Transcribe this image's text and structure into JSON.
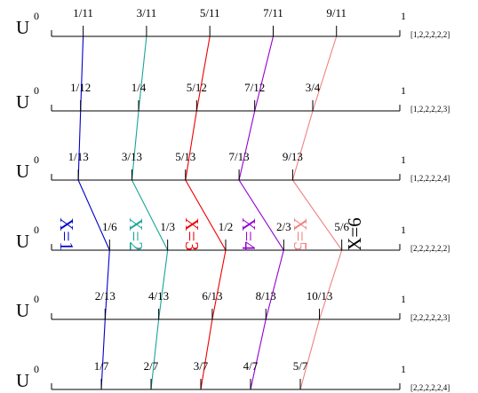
{
  "rows": [
    {
      "U": "U",
      "zero": "0",
      "one": "1",
      "tuple": "[1,2,2,2,2,2]",
      "ticks": [
        {
          "label": "1/11",
          "x": 0.0909
        },
        {
          "label": "3/11",
          "x": 0.2727
        },
        {
          "label": "5/11",
          "x": 0.4545
        },
        {
          "label": "7/11",
          "x": 0.6364
        },
        {
          "label": "9/11",
          "x": 0.8182
        }
      ]
    },
    {
      "U": "U",
      "zero": "0",
      "one": "1",
      "tuple": "[1,2,2,2,2,3]",
      "ticks": [
        {
          "label": "1/12",
          "x": 0.0833
        },
        {
          "label": "1/4",
          "x": 0.25
        },
        {
          "label": "5/12",
          "x": 0.4167
        },
        {
          "label": "7/12",
          "x": 0.5833
        },
        {
          "label": "3/4",
          "x": 0.75
        }
      ]
    },
    {
      "U": "U",
      "zero": "0",
      "one": "1",
      "tuple": "[1,2,2,2,2,4]",
      "ticks": [
        {
          "label": "1/13",
          "x": 0.0769
        },
        {
          "label": "3/13",
          "x": 0.2308
        },
        {
          "label": "5/13",
          "x": 0.3846
        },
        {
          "label": "7/13",
          "x": 0.5385
        },
        {
          "label": "9/13",
          "x": 0.6923
        }
      ]
    },
    {
      "U": "U",
      "zero": "0",
      "one": "1",
      "tuple": "[2,2,2,2,2,2]",
      "ticks": [
        {
          "label": "1/6",
          "x": 0.1667
        },
        {
          "label": "1/3",
          "x": 0.3333
        },
        {
          "label": "1/2",
          "x": 0.5
        },
        {
          "label": "2/3",
          "x": 0.6667
        },
        {
          "label": "5/6",
          "x": 0.8333
        }
      ]
    },
    {
      "U": "U",
      "zero": "0",
      "one": "1",
      "tuple": "[2,2,2,2,2,3]",
      "ticks": [
        {
          "label": "2/13",
          "x": 0.1538
        },
        {
          "label": "4/13",
          "x": 0.3077
        },
        {
          "label": "6/13",
          "x": 0.4615
        },
        {
          "label": "8/13",
          "x": 0.6154
        },
        {
          "label": "10/13",
          "x": 0.7692
        }
      ]
    },
    {
      "U": "U",
      "zero": "0",
      "one": "1",
      "tuple": "[2,2,2,2,2,4]",
      "ticks": [
        {
          "label": "1/7",
          "x": 0.1429
        },
        {
          "label": "2/7",
          "x": 0.2857
        },
        {
          "label": "3/7",
          "x": 0.4286
        },
        {
          "label": "4/7",
          "x": 0.5714
        },
        {
          "label": "5/7",
          "x": 0.7143
        }
      ]
    }
  ],
  "boundaries": [
    {
      "label": "X=1",
      "color": "#0000cc"
    },
    {
      "label": "X=2",
      "color": "#1aa39a"
    },
    {
      "label": "X=3",
      "color": "#ee0000"
    },
    {
      "label": "X=4",
      "color": "#9400d3"
    },
    {
      "label": "X=5",
      "color": "#f08080"
    },
    {
      "label": "X=6",
      "color": "#000000"
    }
  ]
}
